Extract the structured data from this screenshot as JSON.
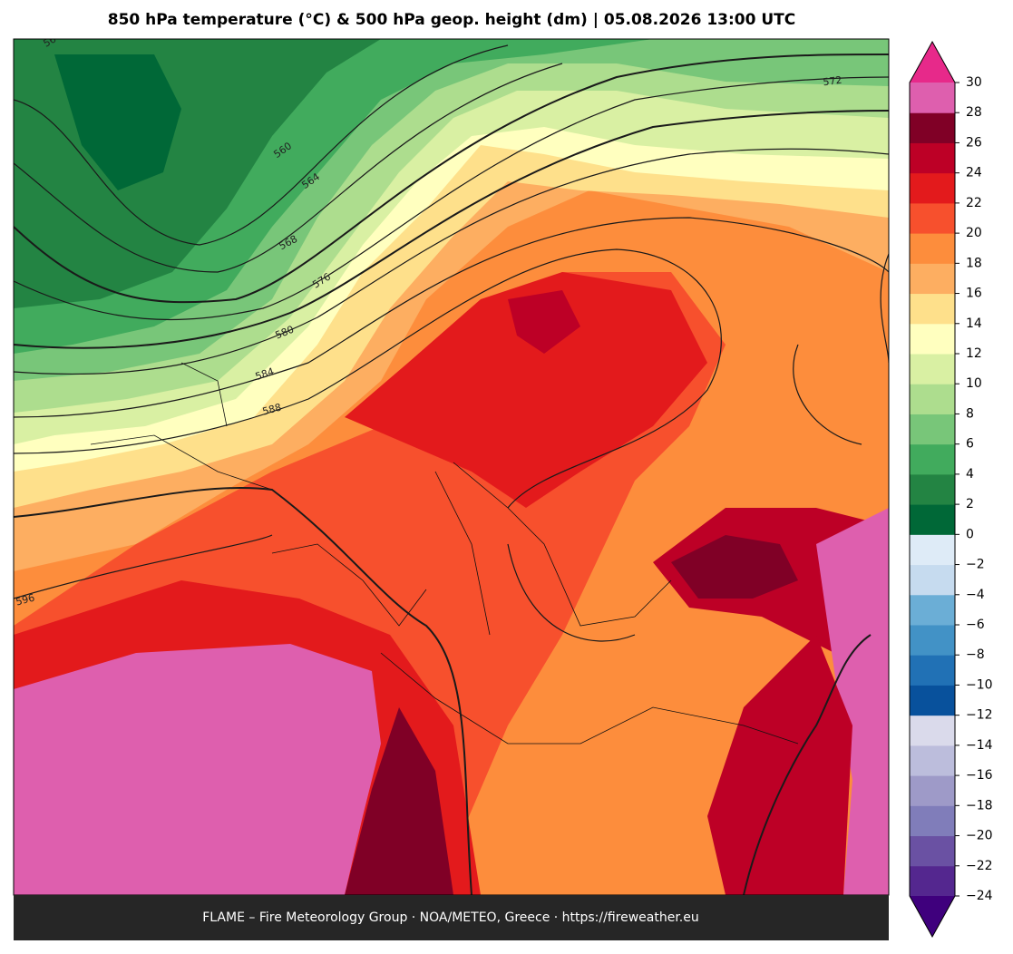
{
  "title": "850 hPa temperature (°C) & 500 hPa geop. height (dm)  |  05.08.2026 13:00 UTC",
  "map": {
    "contour_labels": [
      "56",
      "560",
      "564",
      "568",
      "572",
      "576",
      "580",
      "584",
      "588",
      "596"
    ]
  },
  "colorbar": {
    "range": [
      -24,
      30
    ],
    "ticks": [
      {
        "value": -24,
        "label": "−24"
      },
      {
        "value": -22,
        "label": "−22"
      },
      {
        "value": -20,
        "label": "−20"
      },
      {
        "value": -18,
        "label": "−18"
      },
      {
        "value": -16,
        "label": "−16"
      },
      {
        "value": -14,
        "label": "−14"
      },
      {
        "value": -12,
        "label": "−12"
      },
      {
        "value": -10,
        "label": "−10"
      },
      {
        "value": -8,
        "label": "−8"
      },
      {
        "value": -6,
        "label": "−6"
      },
      {
        "value": -4,
        "label": "−4"
      },
      {
        "value": -2,
        "label": "−2"
      },
      0,
      2,
      4,
      6,
      8,
      10,
      12,
      14,
      16,
      18,
      20,
      22,
      24,
      26,
      28,
      30
    ],
    "colors": [
      "#54278f",
      "#6a51a3",
      "#807dba",
      "#9e9ac8",
      "#bcbddc",
      "#dadaeb",
      "#08519c",
      "#2171b5",
      "#4292c6",
      "#6baed6",
      "#c6dbef",
      "#deebf7",
      "#006837",
      "#238443",
      "#41ab5d",
      "#78c679",
      "#addd8e",
      "#d9f0a3",
      "#ffffbf",
      "#fee08b",
      "#fdae61",
      "#fd8d3c",
      "#f7502d",
      "#e31a1c",
      "#bd0026",
      "#800026",
      "#de5fae"
    ],
    "under_color": "#3f007d",
    "over_color": "#e7298a"
  },
  "footer": "FLAME – Fire Meteorology Group · NOA/METEO, Greece · https://fireweather.eu"
}
